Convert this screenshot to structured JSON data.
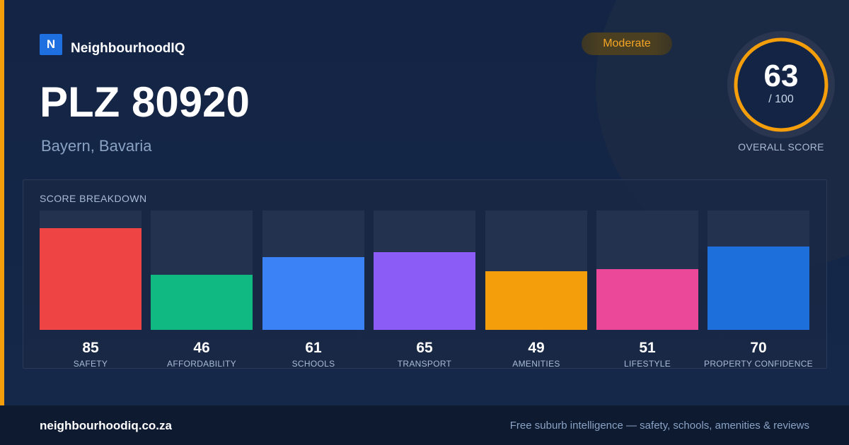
{
  "brand": {
    "logo_letter": "N",
    "name": "NeighbourhoodIQ"
  },
  "location": {
    "title": "PLZ 80920",
    "subtitle": "Bayern, Bavaria"
  },
  "badge": {
    "label": "Moderate",
    "color": "#f5a524"
  },
  "overall": {
    "score": "63",
    "max": "/ 100",
    "label": "OVERALL SCORE",
    "fraction": 0.63,
    "ring_color": "#f59e0b"
  },
  "breakdown": {
    "title": "SCORE BREAKDOWN",
    "items": [
      {
        "value": 85,
        "label": "SAFETY",
        "color": "#ef4444"
      },
      {
        "value": 46,
        "label": "AFFORDABILITY",
        "color": "#10b981"
      },
      {
        "value": 61,
        "label": "SCHOOLS",
        "color": "#3b82f6"
      },
      {
        "value": 65,
        "label": "TRANSPORT",
        "color": "#8b5cf6"
      },
      {
        "value": 49,
        "label": "AMENITIES",
        "color": "#f59e0b"
      },
      {
        "value": 51,
        "label": "LIFESTYLE",
        "color": "#ec4899"
      },
      {
        "value": 70,
        "label": "PROPERTY CONFIDENCE",
        "color": "#1d6fdc"
      }
    ]
  },
  "footer": {
    "url": "neighbourhoodiq.co.za",
    "tagline": "Free suburb intelligence — safety, schools, amenities & reviews"
  }
}
